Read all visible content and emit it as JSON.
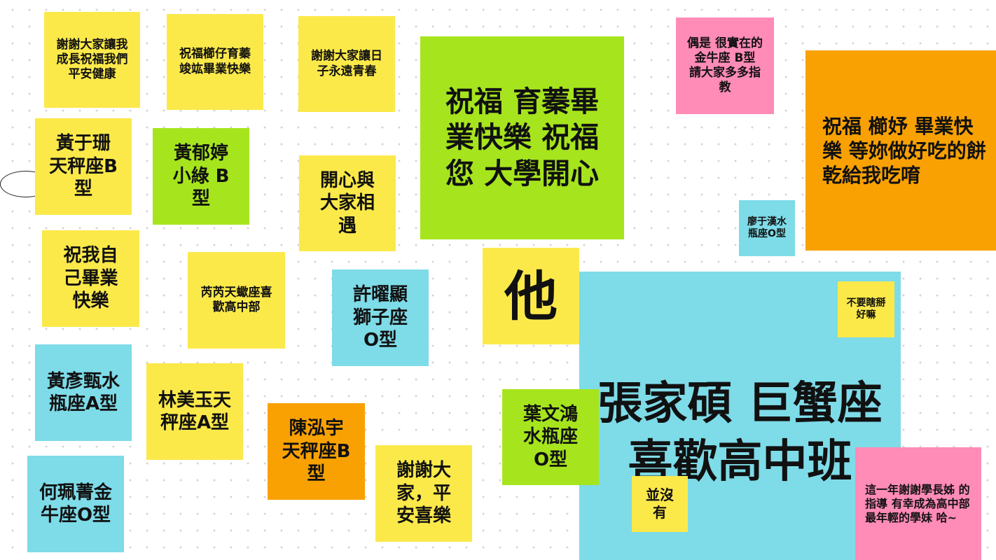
{
  "notes": {
    "n01": "謝謝大家讓我成長祝福我們平安健康",
    "n02": "祝福櫛仔育蓁竣竑畢業快樂",
    "n03": "謝謝大家讓日子永遠青春",
    "n04": "祝福 育蓁畢業快樂 祝福您 大學開心",
    "n05": "偶是 很實在的金牛座 B型 請大家多多指教",
    "n06": "祝福 櫛妤 畢業快樂 等妳做好吃的餅乾給我吃唷",
    "n07": "黃于珊天秤座B型",
    "n08": "黃郁婷小綠 B型",
    "n09": "開心與大家相遇",
    "n10": "廖于漢水瓶座O型",
    "n11": "祝我自己畢業快樂",
    "n12": "芮芮天蠍座喜歡高中部",
    "n13": "許曜顯獅子座O型",
    "n14": "他",
    "n15": "不要瞎掰好嘛",
    "n16": "張家碩 巨蟹座 喜歡高中班",
    "n17": "黃彥甄水瓶座A型",
    "n18": "林美玉天秤座A型",
    "n19": "陳泓宇天秤座B型",
    "n20": "謝謝大家，平安喜樂",
    "n21": "葉文鴻水瓶座O型",
    "n22": "並沒有",
    "n23": "這一年謝謝學長姊 的指導 有幸成為高中部最年輕的學妹 哈~",
    "n24": "何珮菁金牛座O型"
  },
  "colors": {
    "yellow": "#fbe94a",
    "green": "#a6e51d",
    "cyan": "#7edbe8",
    "pink": "#ff8bb7",
    "orange": "#f9a102"
  }
}
